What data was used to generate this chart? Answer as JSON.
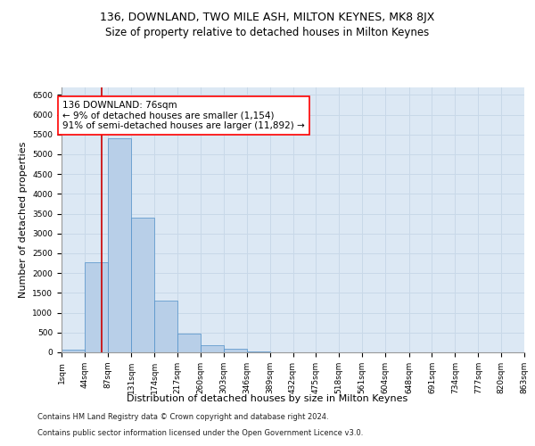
{
  "title": "136, DOWNLAND, TWO MILE ASH, MILTON KEYNES, MK8 8JX",
  "subtitle": "Size of property relative to detached houses in Milton Keynes",
  "xlabel": "Distribution of detached houses by size in Milton Keynes",
  "ylabel": "Number of detached properties",
  "footnote1": "Contains HM Land Registry data © Crown copyright and database right 2024.",
  "footnote2": "Contains public sector information licensed under the Open Government Licence v3.0.",
  "annotation_line1": "136 DOWNLAND: 76sqm",
  "annotation_line2": "← 9% of detached houses are smaller (1,154)",
  "annotation_line3": "91% of semi-detached houses are larger (11,892) →",
  "bar_color": "#b8cfe8",
  "bar_edge_color": "#5090c8",
  "grid_color": "#c8d8e8",
  "marker_line_color": "#cc0000",
  "marker_value": 76,
  "bin_edges": [
    1,
    44,
    87,
    131,
    174,
    217,
    260,
    303,
    346,
    389,
    432,
    475,
    518,
    561,
    604,
    648,
    691,
    734,
    777,
    820,
    863
  ],
  "bin_labels": [
    "1sqm",
    "44sqm",
    "87sqm",
    "131sqm",
    "174sqm",
    "217sqm",
    "260sqm",
    "303sqm",
    "346sqm",
    "389sqm",
    "432sqm",
    "475sqm",
    "518sqm",
    "561sqm",
    "604sqm",
    "648sqm",
    "691sqm",
    "734sqm",
    "777sqm",
    "820sqm",
    "863sqm"
  ],
  "counts": [
    75,
    2280,
    5400,
    3400,
    1300,
    480,
    185,
    90,
    30,
    10,
    5,
    3,
    2,
    1,
    1,
    1,
    0,
    0,
    0,
    0
  ],
  "ylim": [
    0,
    6700
  ],
  "yticks": [
    0,
    500,
    1000,
    1500,
    2000,
    2500,
    3000,
    3500,
    4000,
    4500,
    5000,
    5500,
    6000,
    6500
  ],
  "background_color": "#dce8f4",
  "fig_background": "#ffffff",
  "title_fontsize": 9,
  "subtitle_fontsize": 8.5,
  "axis_label_fontsize": 8,
  "tick_fontsize": 6.5,
  "annotation_fontsize": 7.5,
  "footnote_fontsize": 6
}
